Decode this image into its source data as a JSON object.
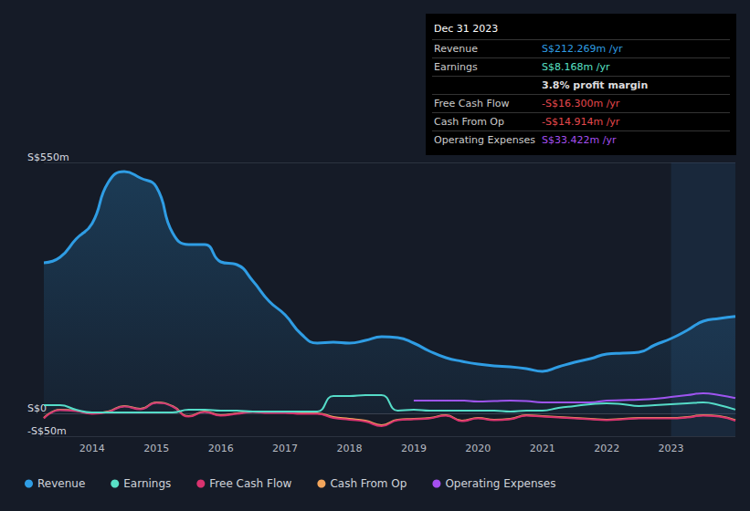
{
  "chart_data": {
    "type": "line",
    "x": [
      2013.25,
      2013.5,
      2013.75,
      2014,
      2014.25,
      2014.5,
      2014.75,
      2015,
      2015.25,
      2015.5,
      2015.75,
      2016,
      2016.25,
      2016.5,
      2016.75,
      2017,
      2017.25,
      2017.5,
      2017.75,
      2018,
      2018.25,
      2018.5,
      2018.75,
      2019,
      2019.25,
      2019.5,
      2019.75,
      2020,
      2020.25,
      2020.5,
      2020.75,
      2021,
      2021.25,
      2021.5,
      2021.75,
      2022,
      2022.25,
      2022.5,
      2022.75,
      2023,
      2023.25,
      2023.5,
      2023.75,
      2024
    ],
    "xlim": [
      2013.25,
      2024
    ],
    "xticks": [
      2014,
      2015,
      2016,
      2017,
      2018,
      2019,
      2020,
      2021,
      2022,
      2023
    ],
    "ylim": [
      -50,
      550
    ],
    "yticks": [
      {
        "value": -50,
        "label": "-S$50m"
      },
      {
        "value": 0,
        "label": "S$0"
      },
      {
        "value": 550,
        "label": "S$550m"
      }
    ],
    "grid": true,
    "legend": "bottom",
    "series": [
      {
        "name": "Revenue",
        "type": "area",
        "color": "#2f9de4",
        "values": [
          330,
          342,
          382,
          416,
          506,
          530,
          516,
          496,
          396,
          370,
          370,
          332,
          326,
          290,
          246,
          216,
          174,
          154,
          156,
          154,
          160,
          168,
          166,
          154,
          136,
          122,
          114,
          108,
          104,
          102,
          98,
          92,
          102,
          112,
          120,
          130,
          132,
          134,
          150,
          164,
          182,
          202,
          208,
          212.269
        ]
      },
      {
        "name": "Earnings",
        "type": "line",
        "color": "#58e0c6",
        "values": [
          18,
          18,
          8,
          2,
          2,
          2,
          2,
          2,
          2,
          8,
          8,
          6,
          6,
          4,
          4,
          4,
          4,
          4,
          38,
          38,
          40,
          40,
          6,
          8,
          6,
          6,
          6,
          6,
          6,
          4,
          6,
          6,
          12,
          16,
          20,
          22,
          20,
          16,
          18,
          20,
          22,
          24,
          18,
          8.168
        ]
      },
      {
        "name": "Free Cash Flow",
        "type": "line",
        "color": "#d9336f",
        "values": [
          -11,
          7,
          5,
          -1,
          3,
          15,
          9,
          23,
          15,
          -7,
          3,
          -5,
          -1,
          3,
          1,
          1,
          -1,
          -1,
          -10,
          -14,
          -18,
          -28,
          -15,
          -13,
          -11,
          -5,
          -17,
          -11,
          -15,
          -13,
          -5,
          -7,
          -9,
          -11,
          -13,
          -15,
          -13,
          -11,
          -11,
          -11,
          -9,
          -5,
          -7,
          -16.3
        ]
      },
      {
        "name": "Cash From Op",
        "type": "line",
        "color": "#f3a65c",
        "values": [
          -10,
          8,
          6,
          0,
          4,
          16,
          10,
          24,
          16,
          -6,
          4,
          -4,
          0,
          4,
          2,
          2,
          0,
          0,
          -8,
          -12,
          -16,
          -26,
          -14,
          -12,
          -10,
          -4,
          -16,
          -10,
          -14,
          -12,
          -4,
          -6,
          -8,
          -10,
          -12,
          -14,
          -12,
          -10,
          -10,
          -10,
          -8,
          -4,
          -6,
          -14.914
        ]
      },
      {
        "name": "Operating Expenses",
        "type": "line",
        "color": "#a64ff0",
        "values": [
          null,
          null,
          null,
          null,
          null,
          null,
          null,
          null,
          null,
          null,
          null,
          null,
          null,
          null,
          null,
          null,
          null,
          null,
          null,
          null,
          null,
          null,
          null,
          28,
          28,
          28,
          28,
          26,
          27,
          28,
          27,
          24,
          24,
          24,
          24,
          28,
          29,
          30,
          32,
          36,
          40,
          44,
          40,
          33.422
        ]
      }
    ],
    "annotations": {
      "title": "Dec 31 2023",
      "rows": [
        {
          "label": "Revenue",
          "value": "S$212.269m /yr",
          "color": "#2f9de4"
        },
        {
          "label": "Earnings",
          "value": "S$8.168m /yr",
          "color": "#58e0c6"
        },
        {
          "value": "3.8% profit margin",
          "color": "#dddddd"
        },
        {
          "label": "Free Cash Flow",
          "value": "-S$16.300m /yr",
          "color": "#e5484d"
        },
        {
          "label": "Cash From Op",
          "value": "-S$14.914m /yr",
          "color": "#e5484d"
        },
        {
          "label": "Operating Expenses",
          "value": "S$33.422m /yr",
          "color": "#a64ff0"
        }
      ]
    }
  }
}
